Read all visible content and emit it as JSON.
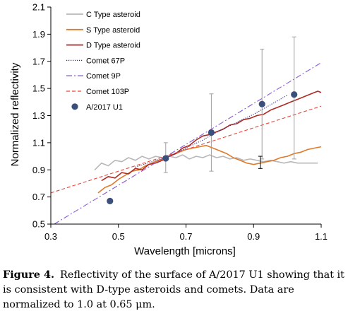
{
  "chart_data": {
    "type": "line",
    "xlabel": "Wavelength [microns]",
    "ylabel": "Normalized reflectivity",
    "xlim": [
      0.3,
      1.1
    ],
    "ylim": [
      0.5,
      2.1
    ],
    "xticks": [
      "0.3",
      "0.5",
      "0.7",
      "0.9",
      "1.1"
    ],
    "yticks": [
      "0.5",
      "0.7",
      "0.9",
      "1.1",
      "1.3",
      "1.5",
      "1.7",
      "1.9",
      "2.1"
    ],
    "legend_position": "top-left",
    "grid": false,
    "series": [
      {
        "name": "C Type asteroid",
        "color": "#b8b8b8",
        "style": "solid",
        "x": [
          0.43,
          0.45,
          0.47,
          0.49,
          0.51,
          0.53,
          0.55,
          0.57,
          0.59,
          0.61,
          0.63,
          0.65,
          0.67,
          0.69,
          0.71,
          0.73,
          0.75,
          0.77,
          0.79,
          0.81,
          0.83,
          0.85,
          0.87,
          0.89,
          0.91,
          0.93,
          0.95,
          0.97,
          0.99,
          1.01,
          1.03,
          1.05,
          1.07,
          1.09
        ],
        "y": [
          0.9,
          0.95,
          0.93,
          0.97,
          0.96,
          0.99,
          0.97,
          1.0,
          0.98,
          1.0,
          0.99,
          1.0,
          0.99,
          1.01,
          0.98,
          1.0,
          0.99,
          1.01,
          0.99,
          1.0,
          0.98,
          0.99,
          0.97,
          0.98,
          0.97,
          0.96,
          0.97,
          0.96,
          0.95,
          0.96,
          0.95,
          0.95,
          0.95,
          0.95
        ]
      },
      {
        "name": "S Type asteroid",
        "color": "#e07a2a",
        "style": "solid",
        "x": [
          0.44,
          0.46,
          0.48,
          0.5,
          0.52,
          0.54,
          0.56,
          0.58,
          0.6,
          0.62,
          0.64,
          0.66,
          0.68,
          0.7,
          0.72,
          0.74,
          0.76,
          0.78,
          0.8,
          0.82,
          0.84,
          0.86,
          0.88,
          0.9,
          0.92,
          0.94,
          0.96,
          0.98,
          1.0,
          1.02,
          1.04,
          1.06,
          1.08,
          1.1
        ],
        "y": [
          0.73,
          0.77,
          0.79,
          0.83,
          0.86,
          0.89,
          0.9,
          0.93,
          0.95,
          0.97,
          0.99,
          1.01,
          1.03,
          1.05,
          1.06,
          1.07,
          1.08,
          1.06,
          1.04,
          1.02,
          0.99,
          0.97,
          0.95,
          0.94,
          0.95,
          0.96,
          0.97,
          0.99,
          1.0,
          1.02,
          1.03,
          1.05,
          1.06,
          1.07
        ]
      },
      {
        "name": "D Type asteroid",
        "color": "#b02a24",
        "style": "solid",
        "x": [
          0.45,
          0.47,
          0.49,
          0.51,
          0.53,
          0.55,
          0.57,
          0.59,
          0.61,
          0.63,
          0.65,
          0.67,
          0.69,
          0.71,
          0.73,
          0.75,
          0.77,
          0.79,
          0.81,
          0.83,
          0.85,
          0.87,
          0.89,
          0.91,
          0.93,
          0.95,
          0.97,
          0.99,
          1.01,
          1.03,
          1.05,
          1.07,
          1.09,
          1.1
        ],
        "y": [
          0.82,
          0.85,
          0.84,
          0.88,
          0.87,
          0.91,
          0.9,
          0.94,
          0.95,
          0.97,
          1.0,
          1.02,
          1.06,
          1.08,
          1.12,
          1.15,
          1.16,
          1.18,
          1.2,
          1.23,
          1.24,
          1.27,
          1.28,
          1.3,
          1.31,
          1.34,
          1.36,
          1.38,
          1.4,
          1.42,
          1.44,
          1.46,
          1.48,
          1.47
        ]
      },
      {
        "name": "Comet 67P",
        "color": "#2b2b8a",
        "style": "dotted",
        "x": [
          0.55,
          0.6,
          0.65,
          0.7,
          0.75,
          0.8,
          0.85,
          0.9,
          0.95,
          1.0
        ],
        "y": [
          0.92,
          0.96,
          1.0,
          1.06,
          1.12,
          1.19,
          1.25,
          1.31,
          1.38,
          1.45
        ]
      },
      {
        "name": "Comet 9P",
        "color": "#8a5ad8",
        "style": "dashdot",
        "x": [
          0.31,
          1.1
        ],
        "y": [
          0.5,
          1.69
        ]
      },
      {
        "name": "Comet 103P",
        "color": "#e8483c",
        "style": "dashed",
        "x": [
          0.3,
          1.1
        ],
        "y": [
          0.73,
          1.37
        ]
      },
      {
        "name": "A/2017 U1",
        "color": "#3a4f7a",
        "style": "markers",
        "x": [
          0.475,
          0.64,
          0.775,
          0.925,
          1.02
        ],
        "y": [
          0.67,
          0.985,
          1.175,
          1.385,
          1.455
        ],
        "err_low": [
          null,
          0.88,
          0.89,
          0.98,
          0.98
        ],
        "err_high": [
          null,
          1.1,
          1.46,
          1.79,
          1.88
        ]
      }
    ]
  },
  "caption": {
    "label": "Figure 4.",
    "text": "Reflectivity of the surface of A/2017 U1 showing that it is consistent with D-type asteroids and comets. Data are normalized to 1.0 at 0.65 μm."
  }
}
